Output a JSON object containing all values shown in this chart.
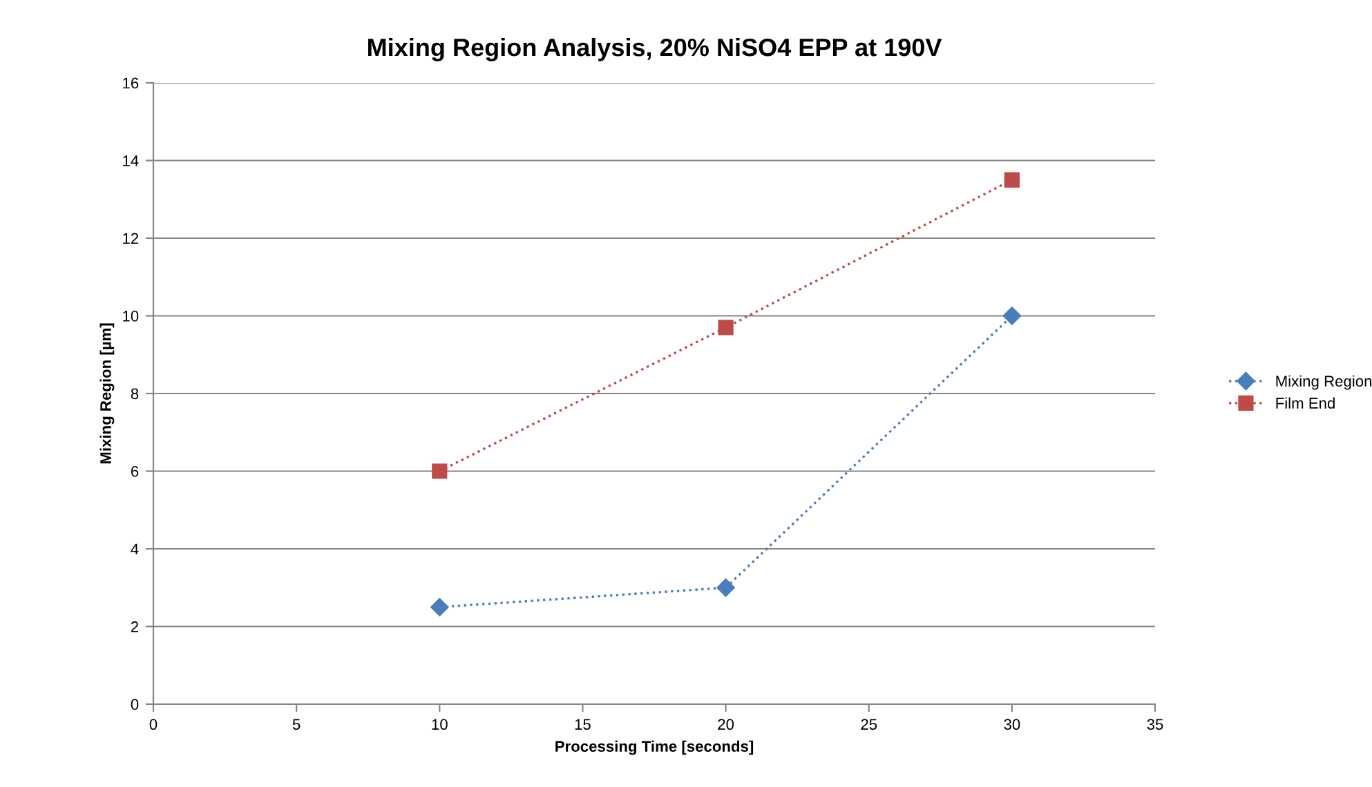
{
  "chart_data": {
    "type": "line",
    "title": "Mixing Region Analysis, 20% NiSO4 EPP at 190V",
    "xlabel": "Processing Time [seconds]",
    "ylabel": "Mixing Region [µm]",
    "x": [
      10,
      20,
      30
    ],
    "series": [
      {
        "name": "Mixing Region",
        "color": "#4a7ebb",
        "marker": "diamond",
        "values": [
          2.5,
          3,
          10
        ]
      },
      {
        "name": "Film End",
        "color": "#be4b48",
        "marker": "square",
        "values": [
          6,
          9.7,
          13.5
        ]
      }
    ],
    "xlim": [
      0,
      35
    ],
    "xticks": [
      0,
      5,
      10,
      15,
      20,
      25,
      30,
      35
    ],
    "ylim": [
      0,
      16
    ],
    "yticks": [
      0,
      2,
      4,
      6,
      8,
      10,
      12,
      14,
      16
    ],
    "grid": "y",
    "legend": "right",
    "line_style": "dotted"
  }
}
